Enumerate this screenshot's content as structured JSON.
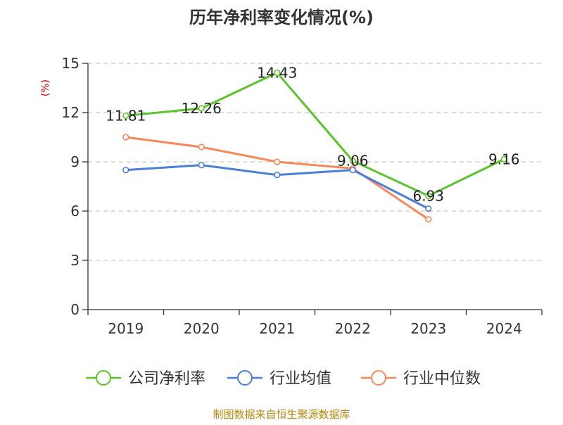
{
  "chart_data": {
    "type": "line",
    "title": "历年净利率变化情况(%)",
    "ylabel": "(%)",
    "xlabel": "",
    "categories": [
      "2019",
      "2020",
      "2021",
      "2022",
      "2023",
      "2024"
    ],
    "ylim": [
      0,
      15
    ],
    "yticks": [
      0,
      3,
      6,
      9,
      12,
      15
    ],
    "grid": "horizontal-dashed",
    "legend_position": "bottom",
    "series": [
      {
        "name": "公司净利率",
        "color": "#5cc32a",
        "values": [
          11.81,
          12.26,
          14.43,
          9.06,
          6.93,
          9.16
        ],
        "labels": [
          "11.81",
          "12.26",
          "14.43",
          "9.06",
          "6.93",
          "9.16"
        ]
      },
      {
        "name": "行业均值",
        "color": "#4a7fd6",
        "values": [
          8.5,
          8.8,
          8.2,
          8.5,
          6.15,
          null
        ]
      },
      {
        "name": "行业中位数",
        "color": "#f5895a",
        "values": [
          10.5,
          9.9,
          9.0,
          8.6,
          5.5,
          null
        ]
      }
    ],
    "source": "制图数据来自恒生聚源数据库"
  }
}
